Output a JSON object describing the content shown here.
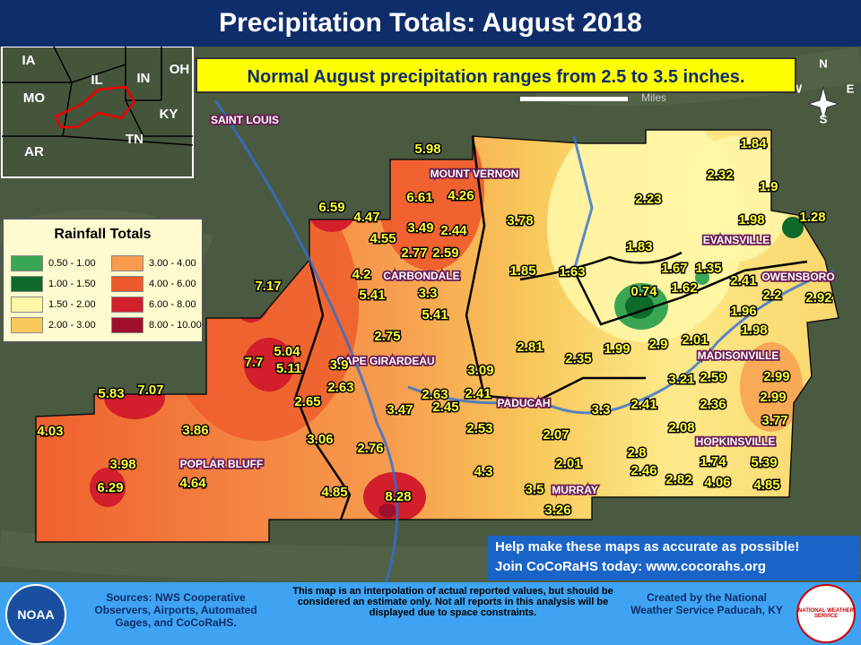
{
  "header": {
    "title": "Precipitation Totals: August 2018"
  },
  "note": "Normal August precipitation ranges from 2.5 to 3.5 inches.",
  "scale_label": "Miles",
  "compass": [
    "N",
    "E",
    "S",
    "W"
  ],
  "inset": {
    "states": [
      "IA",
      "IL",
      "IN",
      "OH",
      "MO",
      "KY",
      "AR",
      "TN"
    ]
  },
  "legend": {
    "title": "Rainfall Totals",
    "items": [
      {
        "label": "0.50 - 1.00",
        "color": "#3aa655"
      },
      {
        "label": "1.00 - 1.50",
        "color": "#0e6a2b"
      },
      {
        "label": "1.50 - 2.00",
        "color": "#fff6a6"
      },
      {
        "label": "2.00 - 3.00",
        "color": "#f8c85a"
      },
      {
        "label": "3.00 - 4.00",
        "color": "#f79c4e"
      },
      {
        "label": "4.00 - 6.00",
        "color": "#ee5a2b"
      },
      {
        "label": "6.00 - 8.00",
        "color": "#d21f2b"
      },
      {
        "label": "8.00 - 10.00",
        "color": "#9e0f2c"
      }
    ]
  },
  "cities": [
    "MOUNT VERNON",
    "CARBONDALE",
    "CAPE GIRARDEAU",
    "PADUCAH",
    "POPLAR BLUFF",
    "MURRAY",
    "HOPKINSVILLE",
    "MADISONVILLE",
    "EVANSVILLE",
    "OWENSBORO",
    "SAINT LOUIS"
  ],
  "totals": [
    "5.98",
    "6.61",
    "4.26",
    "6.59",
    "4.47",
    "3.49",
    "2.44",
    "3.78",
    "4.55",
    "2.77",
    "2.59",
    "7.17",
    "4.2",
    "5.41",
    "3.3",
    "5.41",
    "1.85",
    "1.63",
    "2.75",
    "5.04",
    "7.7",
    "5.11",
    "3.9",
    "2.63",
    "2.65",
    "3.09",
    "2.81",
    "2.35",
    "1.99",
    "2.9",
    "2.41",
    "2.63",
    "2.45",
    "3.47",
    "5.83",
    "7.07",
    "4.03",
    "3.86",
    "3.06",
    "2.76",
    "2.53",
    "2.07",
    "3.3",
    "2.41",
    "3.98",
    "4.64",
    "6.29",
    "4.85",
    "8.28",
    "4.3",
    "3.5",
    "3.26",
    "2.01",
    "2.8",
    "2.46",
    "2.82",
    "2.08",
    "1.74",
    "4.06",
    "5.39",
    "4.85",
    "3.77",
    "2.99",
    "2.99",
    "3.21",
    "2.59",
    "2.36",
    "2.01",
    "1.98",
    "1.96",
    "2.2",
    "2.92",
    "2.41",
    "0.74",
    "1.62",
    "1.67",
    "1.35",
    "1.83",
    "2.23",
    "2.32",
    "1.9",
    "1.84",
    "1.98",
    "1.28"
  ],
  "cta": [
    "Help make these maps as accurate as possible!",
    "Join CoCoRaHS today: www.cocorahs.org"
  ],
  "footer": {
    "logo_left": "NOAA",
    "sources": "Sources: NWS Cooperative Observers, Airports, Automated Gages, and CoCoRaHS.",
    "disclaimer": "This map is an interpolation of actual reported values, but should be considered an estimate only. Not all reports in this analysis will be displayed due to space constraints.",
    "credit": "Created by the National Weather Service Paducah, KY",
    "logo_right": "NATIONAL WEATHER SERVICE"
  }
}
